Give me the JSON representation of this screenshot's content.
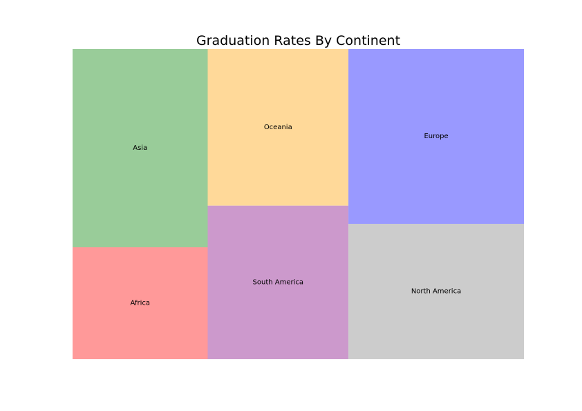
{
  "chart_data": {
    "type": "treemap",
    "title": "Graduation Rates By Continent",
    "categories": [
      "Asia",
      "Africa",
      "Oceania",
      "South America",
      "Europe",
      "North America"
    ],
    "values": [
      62,
      35,
      51,
      50,
      71,
      55
    ],
    "colors": [
      "#99cc99",
      "#ff9999",
      "#ffd999",
      "#cc99cc",
      "#9999ff",
      "#cccccc"
    ],
    "tile_alpha": 0.4,
    "grid": false,
    "axes": "off",
    "legend": "none"
  }
}
